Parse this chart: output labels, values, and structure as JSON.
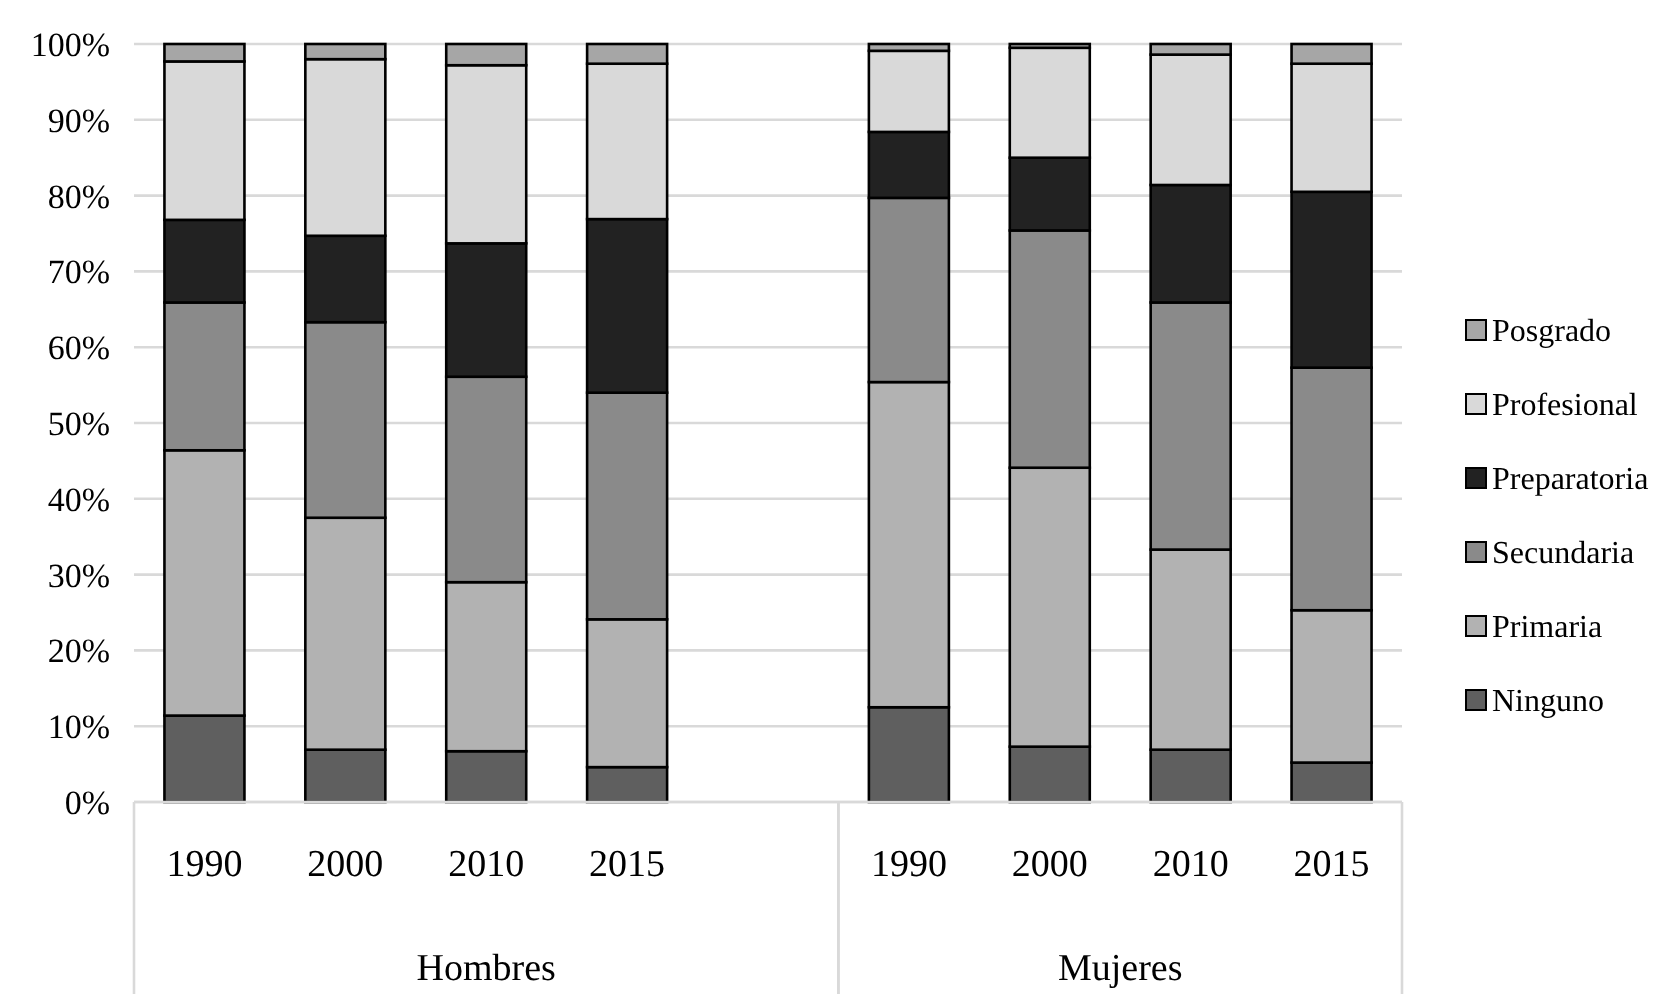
{
  "chart_data": {
    "type": "bar",
    "stacked": true,
    "categories": [
      "1990",
      "2000",
      "2010",
      "2015",
      null,
      "1990",
      "2000",
      "2010",
      "2015"
    ],
    "series": [
      {
        "name": "Ninguno",
        "color": "#5f5f5f",
        "values": [
          11.4,
          6.9,
          6.7,
          4.6,
          null,
          12.5,
          7.3,
          6.9,
          5.2
        ]
      },
      {
        "name": "Primaria",
        "color": "#b2b2b2",
        "values": [
          35.0,
          30.6,
          22.3,
          19.5,
          null,
          42.9,
          36.8,
          26.4,
          20.1
        ]
      },
      {
        "name": "Secundaria",
        "color": "#8a8a8a",
        "values": [
          19.5,
          25.8,
          27.1,
          29.9,
          null,
          24.3,
          31.3,
          32.6,
          32.0
        ]
      },
      {
        "name": "Preparatoria",
        "color": "#222222",
        "values": [
          10.9,
          11.4,
          17.6,
          22.9,
          null,
          8.7,
          9.6,
          15.5,
          23.2
        ]
      },
      {
        "name": "Profesional",
        "color": "#d9d9d9",
        "values": [
          20.9,
          23.3,
          23.5,
          20.5,
          null,
          10.7,
          14.5,
          17.2,
          16.9
        ]
      },
      {
        "name": "Posgrado",
        "color": "#a6a6a6",
        "values": [
          2.3,
          2.0,
          2.8,
          2.6,
          null,
          0.9,
          0.5,
          1.4,
          2.6
        ]
      }
    ],
    "annotations": [
      "Hombres",
      "Mujeres"
    ],
    "ylim": [
      0,
      100
    ],
    "yticks": [
      {
        "value": 0,
        "label": "0%"
      },
      {
        "value": 10,
        "label": "10%"
      },
      {
        "value": 20,
        "label": "20%"
      },
      {
        "value": 30,
        "label": "30%"
      },
      {
        "value": 40,
        "label": "40%"
      },
      {
        "value": 50,
        "label": "50%"
      },
      {
        "value": 60,
        "label": "60%"
      },
      {
        "value": 70,
        "label": "70%"
      },
      {
        "value": 80,
        "label": "80%"
      },
      {
        "value": 90,
        "label": "90%"
      },
      {
        "value": 100,
        "label": "100%"
      }
    ],
    "grid": "y",
    "legend": "right"
  }
}
